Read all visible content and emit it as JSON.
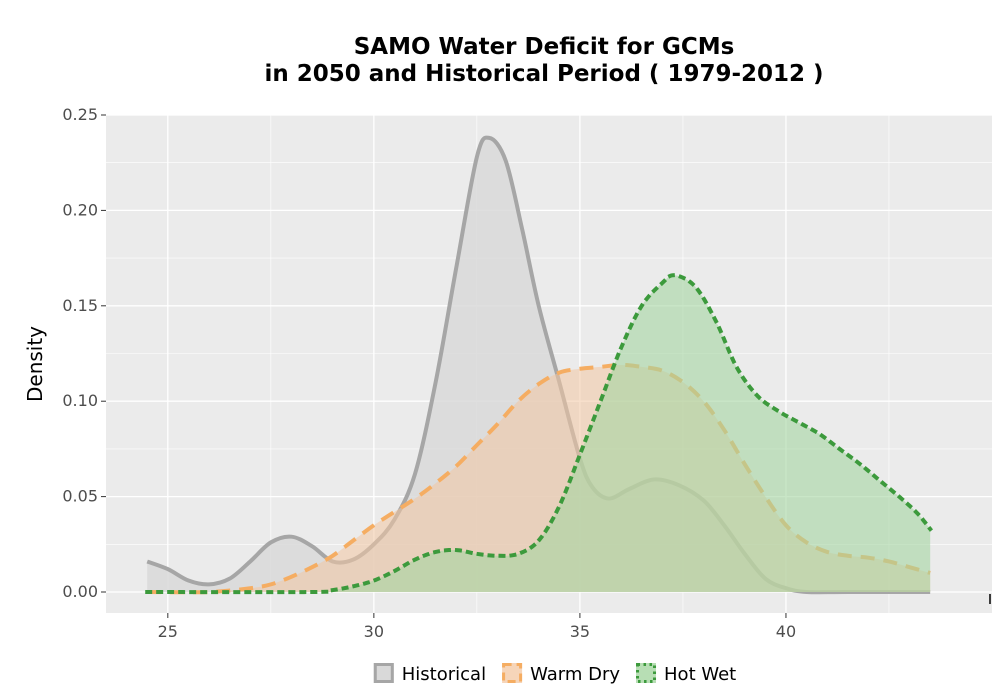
{
  "chart_data": {
    "type": "area",
    "title": "SAMO  Water Deficit for GCMs\nin 2050 and Historical Period ( 1979-2012 )",
    "xlabel": "",
    "ylabel": "Density",
    "xlim": [
      23.5,
      45.0
    ],
    "ylim": [
      -0.011,
      0.25
    ],
    "x_ticks": [
      25,
      30,
      35,
      40
    ],
    "y_ticks": [
      0.0,
      0.05,
      0.1,
      0.15,
      0.2,
      0.25
    ],
    "x_tick_labels": [
      "25",
      "30",
      "35",
      "40"
    ],
    "y_tick_labels": [
      "0.00",
      "0.05",
      "0.10",
      "0.15",
      "0.20",
      "0.25"
    ],
    "grid": true,
    "legend_position": "bottom",
    "series": [
      {
        "name": "Historical",
        "line_color": "#a6a6a6",
        "fill_color": "#d9d9d9",
        "fill_opacity": 0.85,
        "dash": "solid",
        "points": [
          [
            24.5,
            0.016
          ],
          [
            25.0,
            0.012
          ],
          [
            25.5,
            0.006
          ],
          [
            26.0,
            0.004
          ],
          [
            26.5,
            0.007
          ],
          [
            27.0,
            0.016
          ],
          [
            27.5,
            0.026
          ],
          [
            28.0,
            0.029
          ],
          [
            28.5,
            0.024
          ],
          [
            29.0,
            0.016
          ],
          [
            29.5,
            0.017
          ],
          [
            30.0,
            0.025
          ],
          [
            30.5,
            0.038
          ],
          [
            31.0,
            0.062
          ],
          [
            31.5,
            0.11
          ],
          [
            32.0,
            0.17
          ],
          [
            32.5,
            0.228
          ],
          [
            32.8,
            0.238
          ],
          [
            33.2,
            0.226
          ],
          [
            33.6,
            0.19
          ],
          [
            34.0,
            0.15
          ],
          [
            34.5,
            0.11
          ],
          [
            35.0,
            0.07
          ],
          [
            35.3,
            0.055
          ],
          [
            35.7,
            0.049
          ],
          [
            36.2,
            0.054
          ],
          [
            36.8,
            0.059
          ],
          [
            37.4,
            0.056
          ],
          [
            38.0,
            0.048
          ],
          [
            38.5,
            0.035
          ],
          [
            39.0,
            0.02
          ],
          [
            39.5,
            0.007
          ],
          [
            40.0,
            0.002
          ],
          [
            40.5,
            0.0
          ],
          [
            41.5,
            0.0
          ],
          [
            43.5,
            0.0
          ]
        ]
      },
      {
        "name": "Warm Dry",
        "line_color": "#f5ad62",
        "fill_color": "#f3c7a2",
        "fill_opacity": 0.55,
        "dash": "dashed",
        "points": [
          [
            24.5,
            0.0
          ],
          [
            26.0,
            0.0
          ],
          [
            27.0,
            0.002
          ],
          [
            27.5,
            0.004
          ],
          [
            28.0,
            0.008
          ],
          [
            28.5,
            0.013
          ],
          [
            29.0,
            0.019
          ],
          [
            29.5,
            0.027
          ],
          [
            30.0,
            0.035
          ],
          [
            30.5,
            0.042
          ],
          [
            31.0,
            0.049
          ],
          [
            31.5,
            0.057
          ],
          [
            32.0,
            0.066
          ],
          [
            32.5,
            0.077
          ],
          [
            33.0,
            0.088
          ],
          [
            33.5,
            0.1
          ],
          [
            34.0,
            0.109
          ],
          [
            34.5,
            0.115
          ],
          [
            35.0,
            0.117
          ],
          [
            35.5,
            0.118
          ],
          [
            36.0,
            0.119
          ],
          [
            36.5,
            0.118
          ],
          [
            37.0,
            0.116
          ],
          [
            37.5,
            0.11
          ],
          [
            38.0,
            0.1
          ],
          [
            38.5,
            0.085
          ],
          [
            39.0,
            0.067
          ],
          [
            39.5,
            0.05
          ],
          [
            40.0,
            0.035
          ],
          [
            40.5,
            0.026
          ],
          [
            41.0,
            0.021
          ],
          [
            41.5,
            0.019
          ],
          [
            42.0,
            0.018
          ],
          [
            42.5,
            0.016
          ],
          [
            43.0,
            0.013
          ],
          [
            43.5,
            0.01
          ]
        ]
      },
      {
        "name": "Hot Wet",
        "line_color": "#3c9a3c",
        "fill_color": "#a5d6a1",
        "fill_opacity": 0.6,
        "dash": "dotted",
        "points": [
          [
            24.5,
            0.0
          ],
          [
            28.5,
            0.0
          ],
          [
            29.0,
            0.001
          ],
          [
            29.5,
            0.003
          ],
          [
            30.0,
            0.006
          ],
          [
            30.5,
            0.011
          ],
          [
            31.0,
            0.017
          ],
          [
            31.5,
            0.021
          ],
          [
            32.0,
            0.022
          ],
          [
            32.5,
            0.02
          ],
          [
            33.0,
            0.019
          ],
          [
            33.5,
            0.02
          ],
          [
            34.0,
            0.027
          ],
          [
            34.5,
            0.045
          ],
          [
            35.0,
            0.072
          ],
          [
            35.5,
            0.1
          ],
          [
            36.0,
            0.128
          ],
          [
            36.5,
            0.15
          ],
          [
            37.0,
            0.162
          ],
          [
            37.3,
            0.166
          ],
          [
            37.8,
            0.16
          ],
          [
            38.3,
            0.142
          ],
          [
            38.8,
            0.118
          ],
          [
            39.3,
            0.103
          ],
          [
            39.8,
            0.095
          ],
          [
            40.3,
            0.089
          ],
          [
            40.8,
            0.083
          ],
          [
            41.3,
            0.075
          ],
          [
            41.8,
            0.067
          ],
          [
            42.3,
            0.058
          ],
          [
            42.8,
            0.049
          ],
          [
            43.2,
            0.041
          ],
          [
            43.5,
            0.033
          ]
        ]
      }
    ]
  }
}
